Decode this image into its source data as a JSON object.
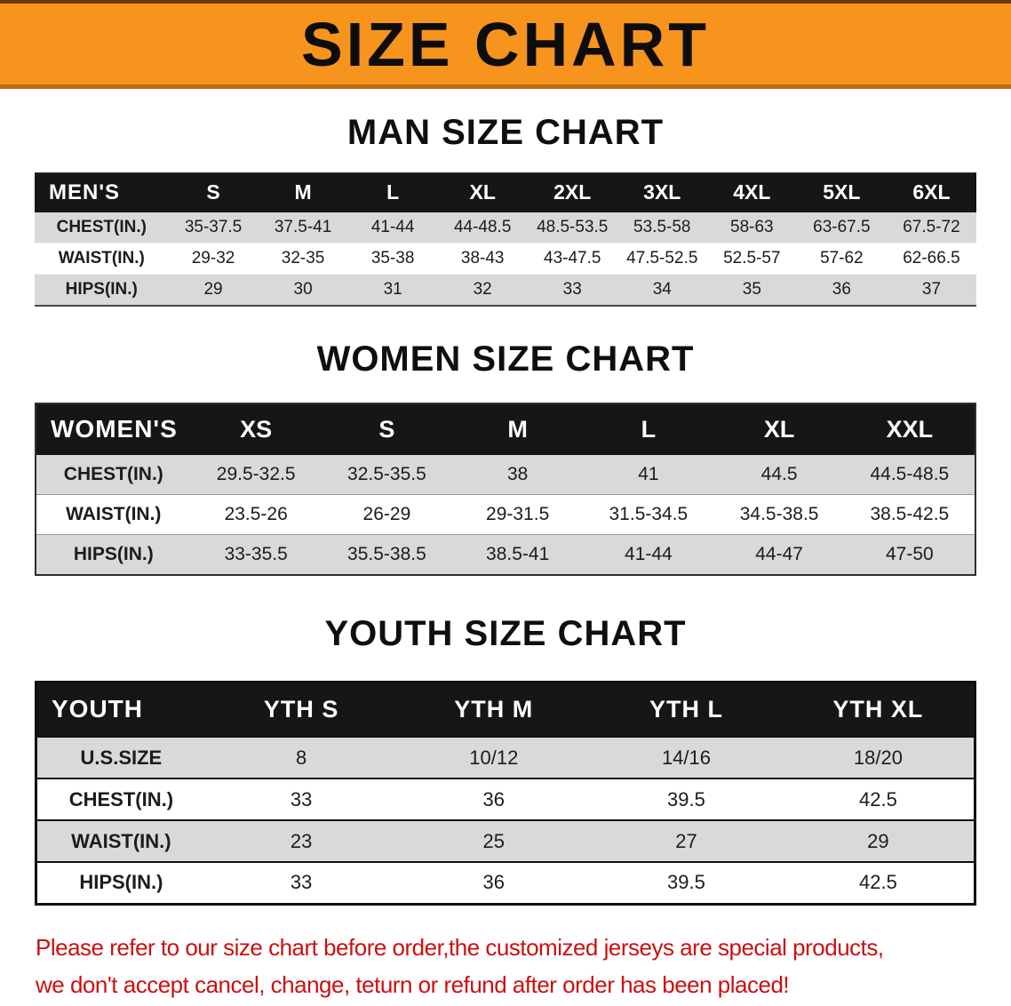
{
  "banner": {
    "title": "SIZE CHART"
  },
  "colors": {
    "banner_orange": "#f7941d",
    "banner_border_top": "#6e3a05",
    "banner_border_bottom": "#b96f10",
    "table_header_black": "#161616",
    "row_gray": "#d9d9d9",
    "footer_red": "#cc1010"
  },
  "sections": {
    "men": {
      "heading": "MAN SIZE CHART"
    },
    "women": {
      "heading": "WOMEN SIZE CHART"
    },
    "youth": {
      "heading": "YOUTH SIZE CHART"
    }
  },
  "tables": {
    "men": {
      "label": "MEN'S",
      "columns": [
        "S",
        "M",
        "L",
        "XL",
        "2XL",
        "3XL",
        "4XL",
        "5XL",
        "6XL"
      ],
      "rows": [
        {
          "label": "CHEST(IN.)",
          "values": [
            "35-37.5",
            "37.5-41",
            "41-44",
            "44-48.5",
            "48.5-53.5",
            "53.5-58",
            "58-63",
            "63-67.5",
            "67.5-72"
          ]
        },
        {
          "label": "WAIST(IN.)",
          "values": [
            "29-32",
            "32-35",
            "35-38",
            "38-43",
            "43-47.5",
            "47.5-52.5",
            "52.5-57",
            "57-62",
            "62-66.5"
          ]
        },
        {
          "label": "HIPS(IN.)",
          "values": [
            "29",
            "30",
            "31",
            "32",
            "33",
            "34",
            "35",
            "36",
            "37"
          ]
        }
      ]
    },
    "women": {
      "label": "WOMEN'S",
      "columns": [
        "XS",
        "S",
        "M",
        "L",
        "XL",
        "XXL"
      ],
      "rows": [
        {
          "label": "CHEST(IN.)",
          "values": [
            "29.5-32.5",
            "32.5-35.5",
            "38",
            "41",
            "44.5",
            "44.5-48.5"
          ]
        },
        {
          "label": "WAIST(IN.)",
          "values": [
            "23.5-26",
            "26-29",
            "29-31.5",
            "31.5-34.5",
            "34.5-38.5",
            "38.5-42.5"
          ]
        },
        {
          "label": "HIPS(IN.)",
          "values": [
            "33-35.5",
            "35.5-38.5",
            "38.5-41",
            "41-44",
            "44-47",
            "47-50"
          ]
        }
      ]
    },
    "youth": {
      "label": "YOUTH",
      "columns": [
        "YTH S",
        "YTH M",
        "YTH L",
        "YTH XL"
      ],
      "rows": [
        {
          "label": "U.S.SIZE",
          "values": [
            "8",
            "10/12",
            "14/16",
            "18/20"
          ]
        },
        {
          "label": "CHEST(IN.)",
          "values": [
            "33",
            "36",
            "39.5",
            "42.5"
          ]
        },
        {
          "label": "WAIST(IN.)",
          "values": [
            "23",
            "25",
            "27",
            "29"
          ]
        },
        {
          "label": "HIPS(IN.)",
          "values": [
            "33",
            "36",
            "39.5",
            "42.5"
          ]
        }
      ]
    }
  },
  "footer": {
    "line1": "Please refer to our size chart before order,the customized jerseys are special products,",
    "line2": "we don't accept cancel, change, teturn or refund after order has been placed!"
  }
}
